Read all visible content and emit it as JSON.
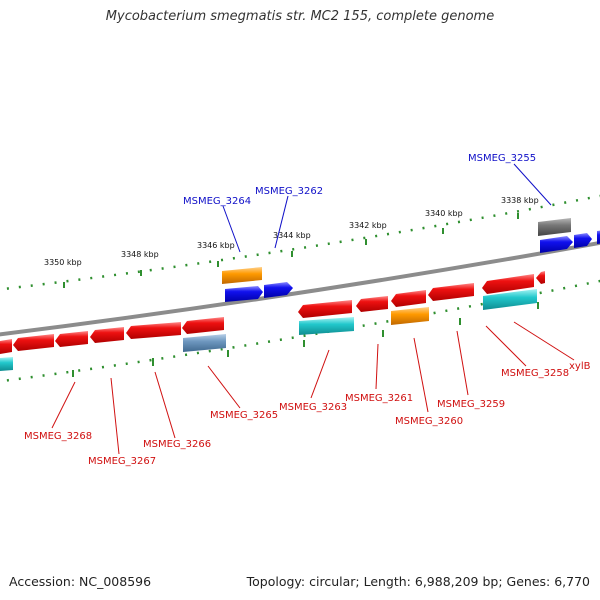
{
  "header": {
    "title": "Mycobacterium smegmatis str. MC2 155, complete genome"
  },
  "footer": {
    "accession": "Accession: NC_008596",
    "summary": "Topology: circular; Length: 6,988,209 bp; Genes: 6,770"
  },
  "colors": {
    "backbone": "#8c8c8c",
    "tick": "#2f8f2f",
    "label_forward": "#1010c8",
    "label_reverse": "#d01010",
    "gene_red": "#ee1111",
    "gene_blue": "#1111ee",
    "gene_orange": "#ff9a00",
    "gene_cyan": "#22c8cc",
    "gene_grey": "#777777",
    "gene_steel": "#6f98c0"
  },
  "scale": {
    "tick_labels": [
      "3350 kbp",
      "3348 kbp",
      "3346 kbp",
      "3344 kbp",
      "3342 kbp",
      "3340 kbp",
      "3338 kbp"
    ]
  },
  "genes_forward": [
    "MSMEG_3264",
    "MSMEG_3262",
    "MSMEG_3255"
  ],
  "genes_reverse": [
    "MSMEG_3268",
    "MSMEG_3267",
    "MSMEG_3266",
    "MSMEG_3265",
    "MSMEG_3263",
    "MSMEG_3261",
    "MSMEG_3260",
    "MSMEG_3259",
    "MSMEG_3258",
    "xylB"
  ]
}
